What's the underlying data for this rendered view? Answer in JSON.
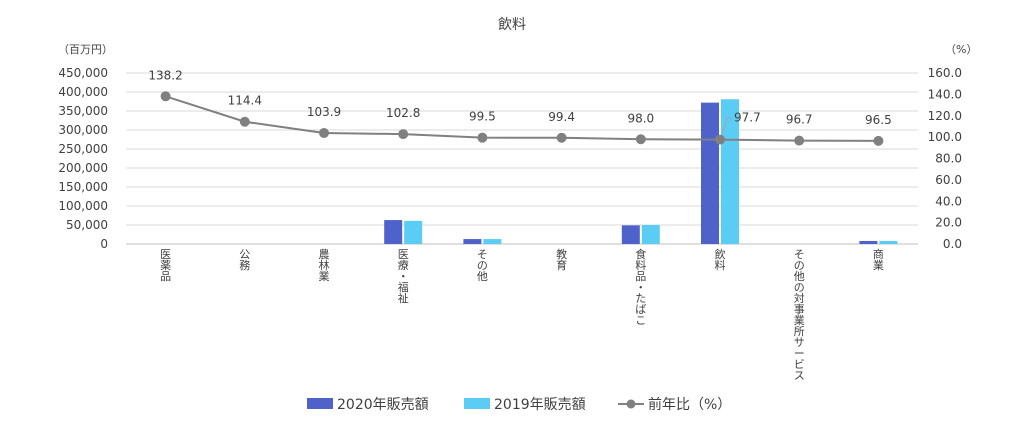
{
  "chart_data": {
    "type": "bar",
    "title": "飲料",
    "left_unit": "（百万円）",
    "right_unit": "（%）",
    "categories": [
      "医薬品",
      "公務",
      "農林業",
      "医療・福祉",
      "その他",
      "教育",
      "食料品・たばこ",
      "飲料",
      "その他の対事業所サービス",
      "商業"
    ],
    "series": [
      {
        "name": "2020年販売額",
        "type": "bar",
        "axis": "left",
        "color": "#4f62c9",
        "values": [
          0,
          0,
          0,
          63000,
          13000,
          0,
          49000,
          372000,
          0,
          8000
        ]
      },
      {
        "name": "2019年販売額",
        "type": "bar",
        "axis": "left",
        "color": "#5bcdf5",
        "values": [
          0,
          0,
          0,
          61000,
          13000,
          0,
          50000,
          381000,
          0,
          8000
        ]
      },
      {
        "name": "前年比（%）",
        "type": "line",
        "axis": "right",
        "color": "#808080",
        "values": [
          138.2,
          114.4,
          103.9,
          102.8,
          99.5,
          99.4,
          98.0,
          97.7,
          96.7,
          96.5
        ],
        "labels": [
          "138.2",
          "114.4",
          "103.9",
          "102.8",
          "99.5",
          "99.4",
          "98.0",
          "97.7",
          "96.7",
          "96.5"
        ]
      }
    ],
    "left_axis": {
      "min": 0,
      "max": 450000,
      "step": 50000,
      "ticks": [
        "0",
        "50,000",
        "100,000",
        "150,000",
        "200,000",
        "250,000",
        "300,000",
        "350,000",
        "400,000",
        "450,000"
      ]
    },
    "right_axis": {
      "min": 0,
      "max": 160,
      "step": 20,
      "ticks": [
        "0.0",
        "20.0",
        "40.0",
        "60.0",
        "80.0",
        "100.0",
        "120.0",
        "140.0",
        "160.0"
      ]
    },
    "grid": true,
    "legend_position": "bottom"
  }
}
